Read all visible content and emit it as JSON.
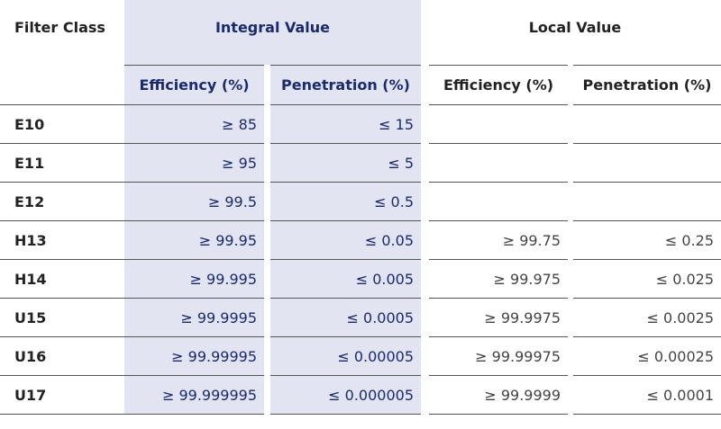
{
  "header": {
    "filter_class": "Filter Class",
    "integral_value": "Integral Value",
    "local_value": "Local Value",
    "columns": [
      "Efficiency (%)",
      "Penetration (%)",
      "Efficiency (%)",
      "Penetration (%)"
    ]
  },
  "table": {
    "rows": [
      {
        "class": "E10",
        "integral": [
          "≥ 85",
          "≤ 15"
        ]
      },
      {
        "class": "E11",
        "integral": [
          "≥ 95",
          "≤ 5"
        ]
      },
      {
        "class": "E12",
        "integral": [
          "≥ 99.5",
          "≤ 0.5"
        ]
      },
      {
        "class": "H13",
        "integral": [
          "≥ 99.95",
          "≤ 0.05"
        ],
        "local": [
          "≥ 99.75",
          "≤ 0.25"
        ]
      },
      {
        "class": "H14",
        "integral": [
          "≥ 99.995",
          "≤ 0.005"
        ],
        "local": [
          "≥ 99.975",
          "≤ 0.025"
        ]
      },
      {
        "class": "U15",
        "integral": [
          "≥ 99.9995",
          "≤ 0.0005"
        ],
        "local": [
          "≥ 99.9975",
          "≤ 0.0025"
        ]
      },
      {
        "class": "U16",
        "integral": [
          "≥ 99.99995",
          "≤ 0.00005"
        ],
        "local": [
          "≥ 99.99975",
          "≤ 0.00025"
        ]
      },
      {
        "class": "U17",
        "integral": [
          "≥ 99.999995",
          "≤ 0.000005"
        ],
        "local": [
          "≥ 99.9999",
          "≤ 0.0001"
        ]
      }
    ]
  }
}
